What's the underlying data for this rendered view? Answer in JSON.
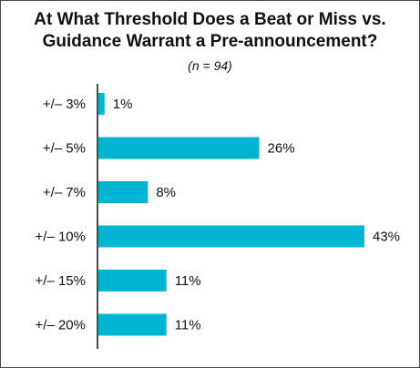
{
  "chart_data": {
    "type": "bar",
    "orientation": "horizontal",
    "title_line1": "At What Threshold Does a Beat or Miss vs.",
    "title_line2": "Guidance Warrant a Pre-announcement?",
    "subtitle": "(n = 94)",
    "categories": [
      "+/– 3%",
      "+/– 5%",
      "+/– 7%",
      "+/– 10%",
      "+/– 15%",
      "+/– 20%"
    ],
    "values": [
      1,
      26,
      8,
      43,
      11,
      11
    ],
    "value_labels": [
      "1%",
      "26%",
      "8%",
      "43%",
      "11%",
      "11%"
    ],
    "xlim": [
      0,
      43
    ],
    "bar_color": "#00b5d1",
    "grid": false,
    "legend": "none"
  }
}
